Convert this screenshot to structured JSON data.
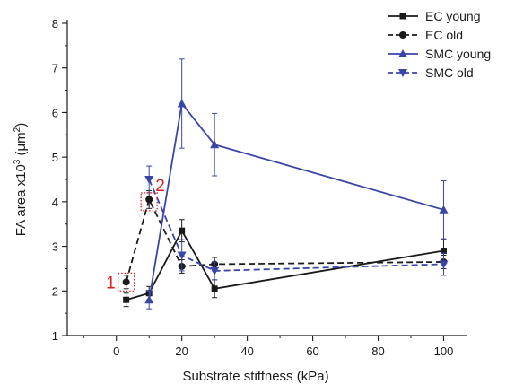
{
  "chart_data": {
    "type": "line",
    "xlabel": "Substrate stiffness (kPa)",
    "ylabel_prefix": "FA area x10",
    "ylabel_exp": "3",
    "ylabel_suffix": " (μm",
    "ylabel_unit_exp": "2",
    "ylabel_close": ")",
    "xlim": [
      -15,
      107
    ],
    "ylim": [
      1,
      8
    ],
    "xticks": [
      0,
      20,
      40,
      60,
      80,
      100
    ],
    "yticks": [
      1,
      2,
      3,
      4,
      5,
      6,
      7,
      8
    ],
    "grid": false,
    "legend_position": "top-right",
    "series": [
      {
        "name": "EC young",
        "color": "#1a1a1a",
        "dash": "solid",
        "marker": "square",
        "x": [
          3,
          10,
          20,
          30,
          100
        ],
        "y": [
          1.8,
          1.95,
          3.35,
          2.05,
          2.9
        ],
        "err": [
          0.15,
          0.15,
          0.25,
          0.2,
          0.25
        ]
      },
      {
        "name": "EC old",
        "color": "#1a1a1a",
        "dash": "dashed",
        "marker": "circle",
        "x": [
          3,
          10,
          20,
          30,
          100
        ],
        "y": [
          2.2,
          4.05,
          2.55,
          2.6,
          2.65
        ],
        "err": [
          0.15,
          0.2,
          0.15,
          0.15,
          0.15
        ]
      },
      {
        "name": "SMC young",
        "color": "#3a45a8",
        "dash": "solid",
        "marker": "triangle-up",
        "x": [
          10,
          20,
          30,
          100
        ],
        "y": [
          1.8,
          6.2,
          5.28,
          3.82
        ],
        "err": [
          0.2,
          1.0,
          0.7,
          0.65
        ]
      },
      {
        "name": "SMC old",
        "color": "#3a45a8",
        "dash": "dashed",
        "marker": "triangle-down",
        "x": [
          10,
          20,
          30,
          100
        ],
        "y": [
          4.5,
          2.8,
          2.45,
          2.6
        ],
        "err": [
          0.3,
          0.35,
          0.2,
          0.25
        ]
      }
    ],
    "annotations": [
      {
        "label": "1",
        "x": 3,
        "y": 2.2,
        "color": "#e02020"
      },
      {
        "label": "2",
        "x": 10,
        "y": 4.0,
        "color": "#e02020"
      }
    ]
  }
}
